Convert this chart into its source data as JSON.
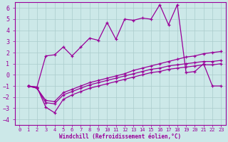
{
  "xlabel": "Windchill (Refroidissement éolien,°C)",
  "bg_color": "#cce8e8",
  "line_color": "#990099",
  "grid_color": "#aacccc",
  "xlim": [
    -0.5,
    23.5
  ],
  "ylim": [
    -4.5,
    6.5
  ],
  "xticks": [
    0,
    1,
    2,
    3,
    4,
    5,
    6,
    7,
    8,
    9,
    10,
    11,
    12,
    13,
    14,
    15,
    16,
    17,
    18,
    19,
    20,
    21,
    22,
    23
  ],
  "yticks": [
    -4,
    -3,
    -2,
    -1,
    0,
    1,
    2,
    3,
    4,
    5,
    6
  ],
  "line1_x": [
    1,
    2,
    3,
    4,
    5,
    6,
    7,
    8,
    9,
    10,
    11,
    12,
    13,
    14,
    15,
    16,
    17,
    18,
    19,
    20,
    21,
    22,
    23
  ],
  "line1_y": [
    -1.0,
    -1.1,
    -2.9,
    -3.4,
    -2.2,
    -1.8,
    -1.5,
    -1.2,
    -1.0,
    -0.8,
    -0.6,
    -0.4,
    -0.2,
    0.0,
    0.2,
    0.3,
    0.5,
    0.6,
    0.7,
    0.8,
    0.9,
    0.9,
    1.0
  ],
  "line2_x": [
    1,
    2,
    3,
    4,
    5,
    6,
    7,
    8,
    9,
    10,
    11,
    12,
    13,
    14,
    15,
    16,
    17,
    18,
    19,
    20,
    21,
    22,
    23
  ],
  "line2_y": [
    -1.0,
    -1.2,
    -2.5,
    -2.6,
    -1.8,
    -1.5,
    -1.2,
    -0.9,
    -0.7,
    -0.5,
    -0.3,
    -0.1,
    0.1,
    0.3,
    0.5,
    0.6,
    0.8,
    0.9,
    1.0,
    1.1,
    1.2,
    1.2,
    1.3
  ],
  "line3_x": [
    1,
    2,
    3,
    4,
    5,
    6,
    7,
    8,
    9,
    10,
    11,
    12,
    13,
    14,
    15,
    16,
    17,
    18,
    19,
    20,
    21,
    22,
    23
  ],
  "line3_y": [
    -1.0,
    -1.2,
    -2.3,
    -2.4,
    -1.6,
    -1.3,
    -1.0,
    -0.7,
    -0.5,
    -0.3,
    -0.1,
    0.1,
    0.4,
    0.6,
    0.8,
    1.0,
    1.2,
    1.4,
    1.6,
    1.7,
    1.9,
    2.0,
    2.1
  ],
  "line4_x": [
    1,
    2,
    3,
    4,
    5,
    6,
    7,
    8,
    9,
    10,
    11,
    12,
    13,
    14,
    15,
    16,
    17,
    18,
    19,
    20,
    21,
    22,
    23
  ],
  "line4_y": [
    -1.0,
    -1.1,
    1.7,
    1.8,
    2.5,
    1.7,
    2.5,
    3.3,
    3.1,
    4.7,
    3.2,
    5.0,
    4.9,
    5.1,
    5.0,
    6.3,
    4.5,
    6.3,
    0.2,
    0.3,
    1.0,
    -1.0,
    -1.0
  ]
}
